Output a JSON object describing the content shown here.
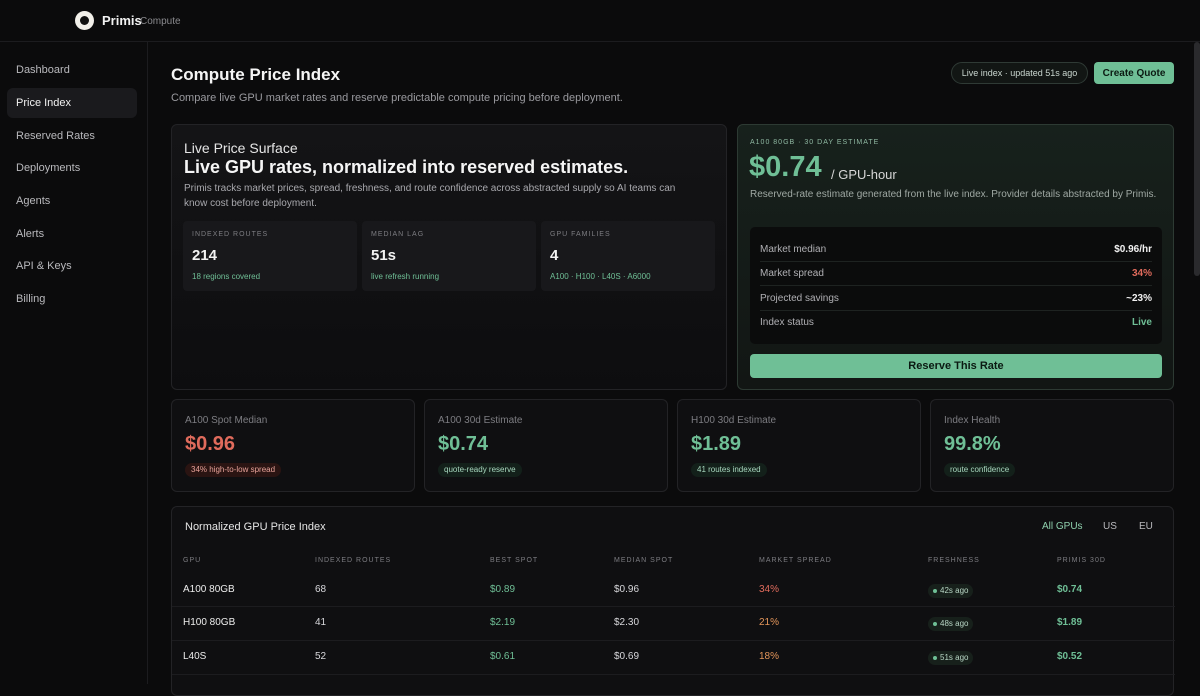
{
  "app": {
    "brand": "Primis",
    "brand_sub": "Compute"
  },
  "sidebar": {
    "items": [
      {
        "label": "Dashboard",
        "name": "dashboard"
      },
      {
        "label": "Price Index",
        "name": "price-index"
      },
      {
        "label": "Reserved Rates",
        "name": "reserved-rates"
      },
      {
        "label": "Deployments",
        "name": "deployments"
      },
      {
        "label": "Agents",
        "name": "agents"
      },
      {
        "label": "Alerts",
        "name": "alerts"
      },
      {
        "label": "API & Keys",
        "name": "api-keys"
      },
      {
        "label": "Billing",
        "name": "billing"
      }
    ],
    "active_index": 1
  },
  "header": {
    "title": "Compute Price Index",
    "subtitle": "Compare live GPU market rates and reserve predictable compute pricing before deployment.",
    "live_status": "Live index · updated  51s  ago",
    "create_quote": "Create Quote"
  },
  "surface": {
    "eyebrow": "Live Price Surface",
    "headline": "Live GPU rates, normalized into reserved estimates.",
    "description": "Primis tracks market prices, spread, freshness, and route confidence across abstracted supply so AI teams can know cost before deployment.",
    "metrics": [
      {
        "label": "INDEXED ROUTES",
        "value": "214",
        "note": "18 regions covered"
      },
      {
        "label": "MEDIAN LAG",
        "value": "51s",
        "note": "live refresh running"
      },
      {
        "label": "GPU FAMILIES",
        "value": "4",
        "note": "A100 · H100 · L40S · A6000"
      }
    ]
  },
  "estimate": {
    "eyebrow": "A100 80GB · 30 DAY ESTIMATE",
    "price": "$0.74",
    "unit": "/ GPU-hour",
    "description": "Reserved-rate estimate generated from the live index. Provider details abstracted by Primis.",
    "stats": [
      {
        "label": "Market median",
        "value": "$0.96/hr"
      },
      {
        "label": "Market spread",
        "value": "34%"
      },
      {
        "label": "Projected savings",
        "value": "~23%"
      },
      {
        "label": "Index status",
        "value": "Live"
      }
    ],
    "reserve_button": "Reserve This Rate"
  },
  "kpis": [
    {
      "label": "A100 Spot Median",
      "value": "$0.96",
      "badge": "34% high-to-low spread",
      "tone": "red"
    },
    {
      "label": "A100 30d Estimate",
      "value": "$0.74",
      "badge": "quote-ready reserve",
      "tone": "green"
    },
    {
      "label": "H100 30d Estimate",
      "value": "$1.89",
      "badge": "41 routes indexed",
      "tone": "green"
    },
    {
      "label": "Index Health",
      "value": "99.8%",
      "badge": "route confidence",
      "tone": "green"
    }
  ],
  "table": {
    "title": "Normalized GPU Price Index",
    "filters": [
      "All GPUs",
      "US",
      "EU"
    ],
    "columns": [
      "GPU",
      "INDEXED ROUTES",
      "BEST SPOT",
      "MEDIAN SPOT",
      "MARKET SPREAD",
      "FRESHNESS",
      "PRIMIS 30D"
    ],
    "rows": [
      {
        "gpu": "A100 80GB",
        "routes": "68",
        "best": "$0.89",
        "median": "$0.96",
        "spread": "34%",
        "fresh": "42s ago",
        "primis": "$0.74"
      },
      {
        "gpu": "H100 80GB",
        "routes": "41",
        "best": "$2.19",
        "median": "$2.30",
        "spread": "21%",
        "fresh": "48s ago",
        "primis": "$1.89"
      },
      {
        "gpu": "L40S",
        "routes": "52",
        "best": "$0.61",
        "median": "$0.69",
        "spread": "18%",
        "fresh": "51s ago",
        "primis": "$0.52"
      }
    ]
  },
  "colors": {
    "accent": "#6fbf96",
    "negative": "#e06b5c",
    "warning": "#e3955a",
    "background": "#0b0b0c"
  }
}
